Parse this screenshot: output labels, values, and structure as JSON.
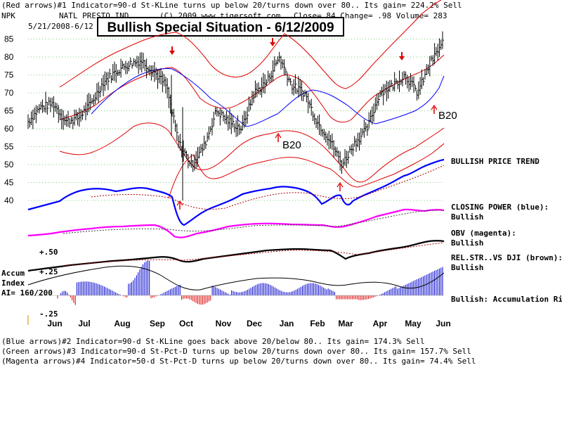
{
  "header": {
    "line1": "(Red arrows)#1 Indicator=90-d St-KLine turns up below 20/turns down over 80.. Its gain= 224.2% Sell",
    "ticker": "NPK",
    "company": "NATL PRESTO IND",
    "copyright": "(C) 2009 www.tigersoft.com",
    "quote": "Close=  84   Change= .98 Volume= 283",
    "date_range": "5/21/2008-6/12",
    "headline": "Bullish Special Situation - 6/12/2009"
  },
  "footer": {
    "line1": "(Blue arrows)#2 Indicator=90-d St-KLine goes back above 20/below 80.. Its gain= 174.3% Sell",
    "line2": "(Green arrows)#3 Indicator=90-d St-Pct-D turns up below 20/turns down over 80.. Its gain= 157.7% Sell",
    "line3": "(Magenta arrows)#4 Indicator=50-d St-Pct-D turns up below 20/turns down over 80.. Its gain= 74.4% Sell"
  },
  "labels": {
    "b20_a": "B20",
    "b20_b": "B20",
    "bullish_trend": "BULLISH PRICE TREND",
    "cp_label": "CLOSING POWER (blue):",
    "cp_state": "Bullish",
    "obv_label": "OBV (magenta):",
    "obv_state": "Bullish",
    "rs_label": "REL.STR..VS DJI (brown):",
    "rs_state": "Bullish",
    "accum_state": "Bullish: Accumulation Rising",
    "accum_title1": "Accum",
    "accum_title2": "Index",
    "accum_ai": "AI= 160/200",
    "accum_hi": "+.50",
    "accum_mid": "+.25",
    "accum_lo": "-.25"
  },
  "colors": {
    "price": "#000000",
    "band": "#dd0000",
    "ma": "#0000ff",
    "closing_power": "#0000ff",
    "obv": "#ff00ff",
    "rel_strength": "#000000",
    "accum_up": "#0000cc",
    "accum_down": "#dd0000",
    "arrow_sell": "#dd0000",
    "grid": "#009900"
  },
  "chart_data": {
    "type": "line",
    "title": "Bullish Special Situation - 6/12/2009",
    "x_ticks": [
      "Jun",
      "Jul",
      "Aug",
      "Sep",
      "Oct",
      "Nov",
      "Dec",
      "Jan",
      "Feb",
      "Mar",
      "Apr",
      "May",
      "Jun"
    ],
    "y_ticks": [
      40,
      45,
      50,
      55,
      60,
      65,
      70,
      75,
      80,
      85
    ],
    "ylim": [
      40,
      86
    ],
    "grid": true,
    "price_path": [
      [
        "Jun",
        62
      ],
      [
        "Jun",
        66
      ],
      [
        "Jun",
        67
      ],
      [
        "Jul",
        62
      ],
      [
        "Jul",
        63
      ],
      [
        "Jul",
        67
      ],
      [
        "Aug",
        73
      ],
      [
        "Aug",
        76
      ],
      [
        "Aug",
        78
      ],
      [
        "Sep",
        79
      ],
      [
        "Sep",
        76
      ],
      [
        "Sep",
        72
      ],
      [
        "Oct",
        56
      ],
      [
        "Oct",
        50
      ],
      [
        "Oct",
        55
      ],
      [
        "Nov",
        65
      ],
      [
        "Nov",
        62
      ],
      [
        "Nov",
        60
      ],
      [
        "Dec",
        70
      ],
      [
        "Dec",
        73
      ],
      [
        "Jan",
        80
      ],
      [
        "Jan",
        72
      ],
      [
        "Jan",
        70
      ],
      [
        "Feb",
        62
      ],
      [
        "Feb",
        57
      ],
      [
        "Mar",
        50
      ],
      [
        "Mar",
        56
      ],
      [
        "Mar",
        60
      ],
      [
        "Apr",
        70
      ],
      [
        "Apr",
        72
      ],
      [
        "Apr",
        75
      ],
      [
        "May",
        70
      ],
      [
        "May",
        78
      ],
      [
        "Jun",
        84
      ]
    ],
    "sell_arrows": [
      [
        "Sep",
        79
      ],
      [
        "Jan",
        84
      ],
      [
        "Apr",
        78
      ]
    ],
    "buy_arrows": [
      [
        "Oct",
        40
      ],
      [
        "Mar",
        44
      ]
    ],
    "b20_arrows": [
      [
        "Dec",
        57
      ],
      [
        "May",
        64
      ]
    ],
    "accum_range": [
      -0.25,
      0.5
    ]
  }
}
